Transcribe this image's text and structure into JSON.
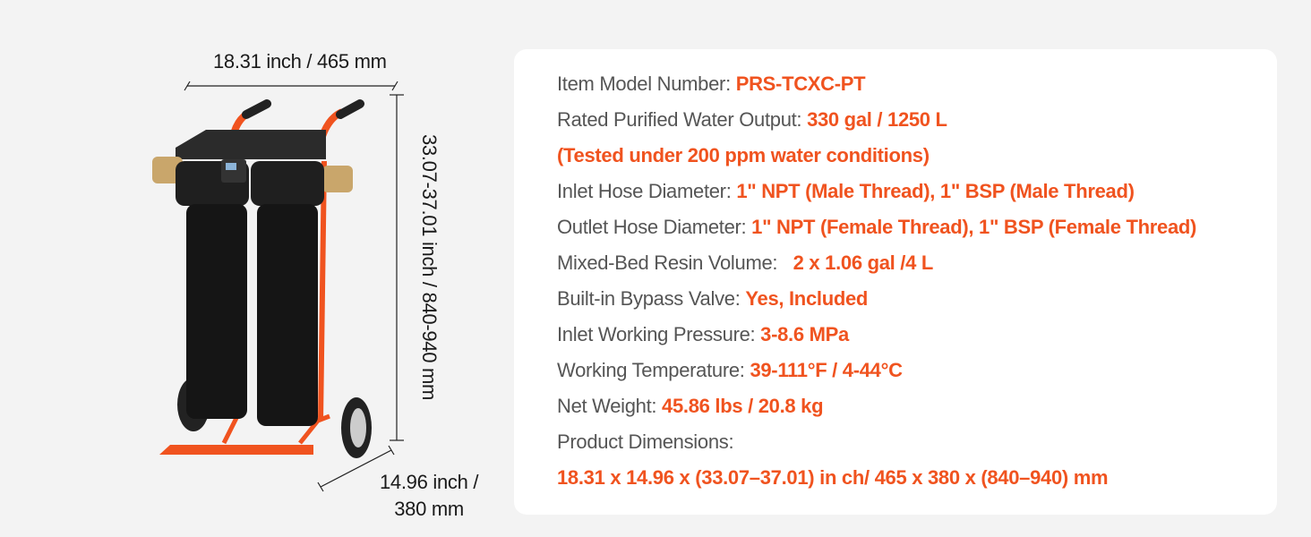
{
  "dimensions": {
    "width": "18.31 inch / 465 mm",
    "height": "33.07-37.01 inch / 840-940 mm",
    "depth_line1": "14.96 inch /",
    "depth_line2": "380 mm"
  },
  "colors": {
    "accent": "#f0531f",
    "label": "#555555",
    "card": "#ffffff",
    "background": "#f3f3f3"
  },
  "specs": [
    {
      "label": "Item Model Number: ",
      "value": "PRS-TCXC-PT"
    },
    {
      "label": "Rated Purified Water Output: ",
      "value": "330 gal / 1250 L"
    },
    {
      "label": "",
      "value": "(Tested under 200 ppm water conditions)"
    },
    {
      "label": "Inlet Hose Diameter: ",
      "value": "1\" NPT (Male Thread), 1\" BSP (Male Thread)"
    },
    {
      "label": "Outlet Hose Diameter: ",
      "value": "1\" NPT (Female Thread), 1\" BSP (Female Thread)"
    },
    {
      "label": "Mixed-Bed Resin Volume:   ",
      "value": "2 x 1.06 gal /4 L"
    },
    {
      "label": "Built-in Bypass Valve: ",
      "value": "Yes, Included"
    },
    {
      "label": "Inlet Working Pressure: ",
      "value": "3-8.6 MPa"
    },
    {
      "label": "Working Temperature: ",
      "value": "39-111°F / 4-44°C"
    },
    {
      "label": "Net Weight: ",
      "value": "45.86 lbs / 20.8 kg"
    },
    {
      "label": "Product Dimensions:",
      "value": ""
    },
    {
      "label": "",
      "value": "18.31 x 14.96 x (33.07–37.01) in ch/ 465 x 380 x (840–940) mm"
    }
  ]
}
